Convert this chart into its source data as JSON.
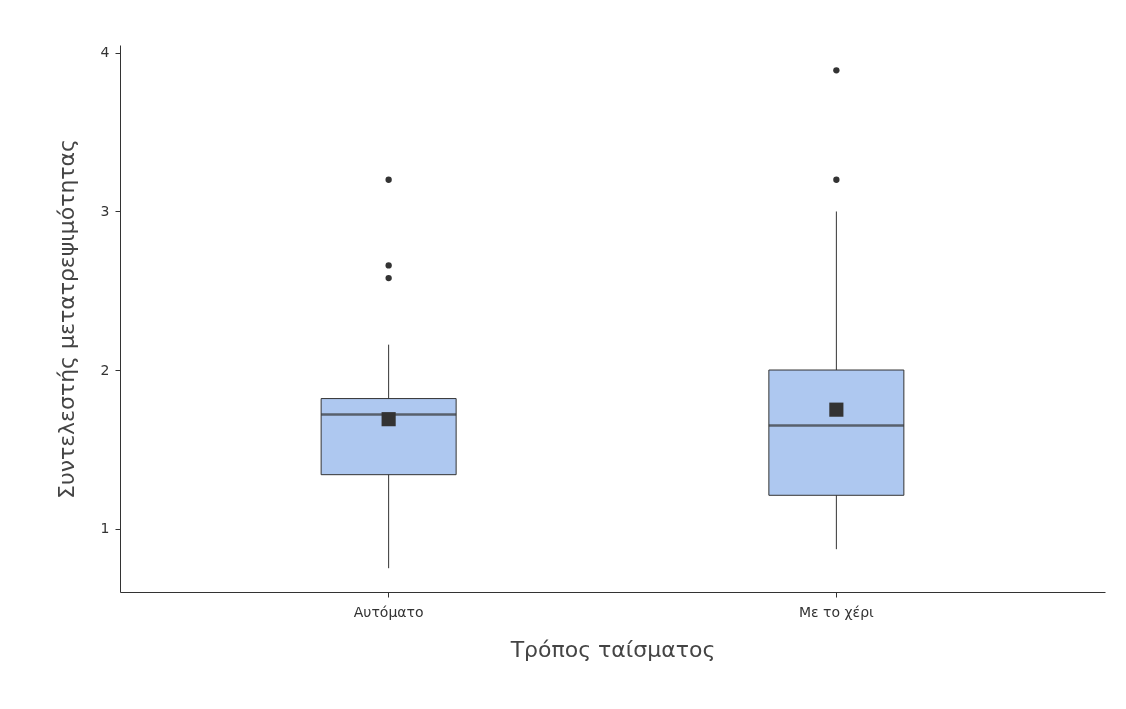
{
  "chart_data": {
    "type": "box",
    "xlabel": "Τρόπος ταίσματος",
    "ylabel": "Συντελεστής μετατρεψιμότητας",
    "categories": [
      "Αυτόματο",
      "Με το χέρι"
    ],
    "color": "#aec8f0",
    "boxes": [
      {
        "low": 0.75,
        "q1": 1.34,
        "median": 1.72,
        "q3": 1.82,
        "high": 2.16,
        "mean": 1.69,
        "outliers": [
          2.58,
          2.66,
          3.2
        ]
      },
      {
        "low": 0.87,
        "q1": 1.21,
        "median": 1.65,
        "q3": 2.0,
        "high": 3.0,
        "mean": 1.75,
        "outliers": [
          3.2,
          3.89
        ]
      }
    ],
    "ylim": [
      0.6,
      4.05
    ],
    "yticks": [
      1,
      2,
      3,
      4
    ]
  }
}
